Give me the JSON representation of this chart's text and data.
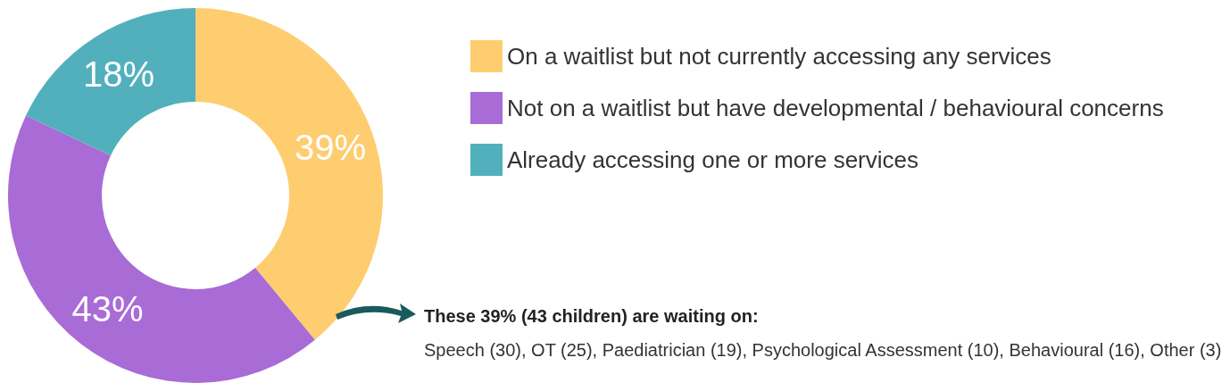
{
  "chart_data": {
    "type": "donut",
    "categories": [
      "On a waitlist but not currently accessing any services",
      "Not on a waitlist but have developmental / behavioural concerns",
      "Already accessing one or more services"
    ],
    "values": [
      39,
      43,
      18
    ],
    "colors": [
      "#fecd70",
      "#a96bd6",
      "#52b0bd"
    ],
    "value_labels": [
      "39%",
      "43%",
      "18%"
    ],
    "legend": "right",
    "annotations": [
      "These 39% (43 children) are waiting on:",
      "Speech (30), OT (25), Paediatrician (19), Psychological Assessment (10), Behavioural (16), Other (3)"
    ]
  }
}
